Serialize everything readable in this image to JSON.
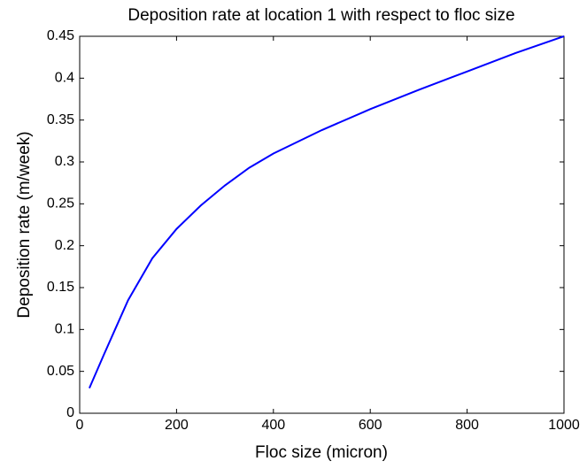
{
  "chart_data": {
    "type": "line",
    "title": "Deposition rate at location 1 with respect to floc size",
    "x_label": "Floc size (micron)",
    "y_label": "Deposition rate (m/week)",
    "x": [
      20,
      50,
      100,
      150,
      200,
      250,
      300,
      350,
      400,
      500,
      600,
      700,
      800,
      900,
      1000
    ],
    "series": [
      {
        "color": "#0000ff",
        "values": [
          0.03,
          0.07,
          0.135,
          0.185,
          0.22,
          0.248,
          0.272,
          0.293,
          0.31,
          0.338,
          0.363,
          0.386,
          0.408,
          0.43,
          0.45
        ]
      }
    ],
    "xlim": [
      0,
      1000
    ],
    "xticks": [
      0,
      200,
      400,
      600,
      800,
      1000
    ],
    "ylim": [
      0,
      0.45
    ],
    "yticks": [
      0,
      0.05,
      0.1,
      0.15,
      0.2,
      0.25,
      0.3,
      0.35,
      0.4,
      0.45
    ],
    "grid": false
  }
}
